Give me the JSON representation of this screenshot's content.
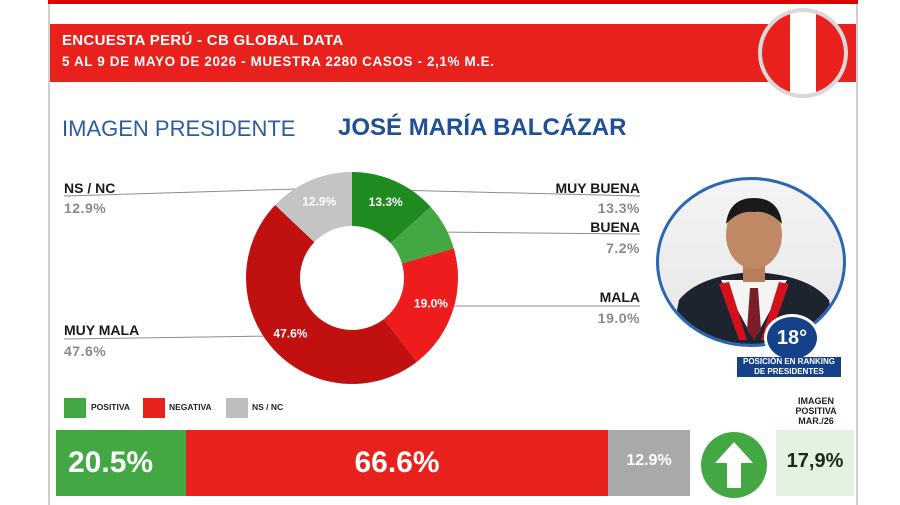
{
  "header": {
    "line1": "ENCUESTA PERÚ - CB GLOBAL DATA",
    "line2": "5 AL 9 DE MAYO DE 2026 - MUESTRA 2280 CASOS - 2,1% M.E."
  },
  "title": {
    "left": "IMAGEN PRESIDENTE",
    "right": "JOSÉ MARÍA BALCÁZAR"
  },
  "callouts": {
    "nsnc": {
      "label": "NS / NC",
      "value": "12.9%"
    },
    "muy_mala": {
      "label": "MUY MALA",
      "value": "47.6%"
    },
    "muy_buena": {
      "label": "MUY BUENA",
      "value": "13.3%"
    },
    "buena": {
      "label": "BUENA",
      "value": "7.2%"
    },
    "mala": {
      "label": "MALA",
      "value": "19.0%"
    }
  },
  "rank": {
    "value": "18°",
    "caption": "POSICIÓN EN RANKING DE PRESIDENTES"
  },
  "legend": [
    {
      "label": "POSITIVA",
      "color": "#43a843"
    },
    {
      "label": "NEGATIVA",
      "color": "#e8211d"
    },
    {
      "label": "NS / NC",
      "color": "#bdbdbd"
    }
  ],
  "summary": {
    "positiva": "20.5%",
    "negativa": "66.6%",
    "nsnc": "12.9%",
    "prev_title": "IMAGEN POSITIVA MAR./26",
    "prev_value": "17,9%",
    "trend_icon": "arrow-up-icon"
  },
  "chart_data": {
    "type": "pie",
    "donut": true,
    "slices": [
      {
        "name": "MUY BUENA",
        "value": 13.3,
        "label": "13.3%",
        "color": "#1f8a1f"
      },
      {
        "name": "BUENA",
        "value": 7.2,
        "label": "",
        "color": "#43a843"
      },
      {
        "name": "MALA",
        "value": 19.0,
        "label": "19.0%",
        "color": "#ee1c1c"
      },
      {
        "name": "MUY MALA",
        "value": 47.6,
        "label": "47.6%",
        "color": "#c01010"
      },
      {
        "name": "NS / NC",
        "value": 12.9,
        "label": "12.9%",
        "color": "#c4c4c4"
      }
    ],
    "bars": [
      {
        "name": "POSITIVA",
        "value": 20.5
      },
      {
        "name": "NEGATIVA",
        "value": 66.6
      },
      {
        "name": "NS / NC",
        "value": 12.9
      }
    ]
  }
}
